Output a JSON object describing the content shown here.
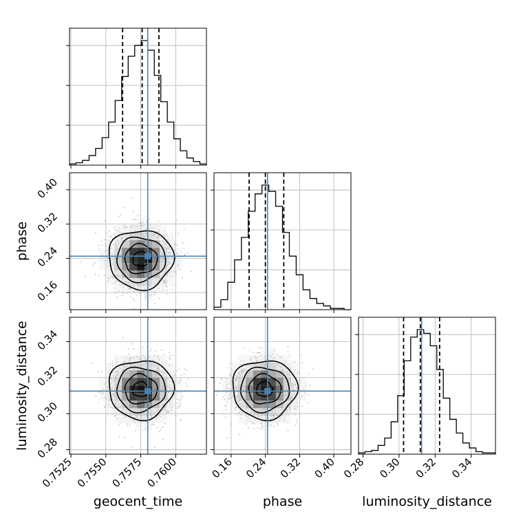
{
  "chart_data": {
    "type": "corner",
    "parameters": [
      {
        "key": "geocent_time",
        "label": "geocent_time",
        "truth": 0.758,
        "quantiles": [
          0.7562,
          0.7576,
          0.7588
        ],
        "range": [
          0.7524,
          0.7622
        ],
        "ticks": [
          "0.7525",
          "0.7550",
          "0.7575",
          "0.7600"
        ],
        "tick_values": [
          0.7525,
          0.755,
          0.7575,
          0.76
        ]
      },
      {
        "key": "phase",
        "label": "phase",
        "truth": 0.245,
        "quantiles": [
          0.202,
          0.24,
          0.283
        ],
        "range": [
          0.12,
          0.44
        ],
        "ticks": [
          "0.16",
          "0.24",
          "0.32",
          "0.40"
        ],
        "tick_values": [
          0.16,
          0.24,
          0.32,
          0.4
        ]
      },
      {
        "key": "luminosity_distance",
        "label": "luminosity_distance",
        "truth": 0.3125,
        "quantiles": [
          0.3025,
          0.3118,
          0.3225
        ],
        "range": [
          0.2775,
          0.3535
        ],
        "ticks": [
          "0.28",
          "0.30",
          "0.32",
          "0.34"
        ],
        "tick_values": [
          0.28,
          0.3,
          0.32,
          0.34
        ]
      }
    ],
    "histograms": {
      "geocent_time": [
        1,
        2,
        4,
        8,
        14,
        23,
        36,
        54,
        74,
        91,
        100,
        104,
        96,
        75,
        53,
        36,
        22,
        12,
        6,
        3,
        1
      ],
      "phase": [
        2,
        8,
        22,
        40,
        58,
        79,
        93,
        100,
        95,
        83,
        62,
        43,
        28,
        16,
        9,
        5,
        3,
        1,
        1,
        0
      ],
      "luminosity_distance": [
        1,
        2,
        3,
        7,
        13,
        26,
        47,
        75,
        94,
        100,
        97,
        87,
        68,
        45,
        28,
        17,
        9,
        5,
        2,
        1,
        1
      ]
    },
    "pair_centers": {
      "phase|geocent_time": [
        0.7575,
        0.238
      ],
      "luminosity_distance|geocent_time": [
        0.7575,
        0.3135
      ],
      "luminosity_distance|phase": [
        0.238,
        0.3135
      ]
    },
    "truth_color": "#4682b4",
    "hist_color": "#000000",
    "quantile_line": "dashed",
    "grid": true,
    "contour_levels": 4
  }
}
